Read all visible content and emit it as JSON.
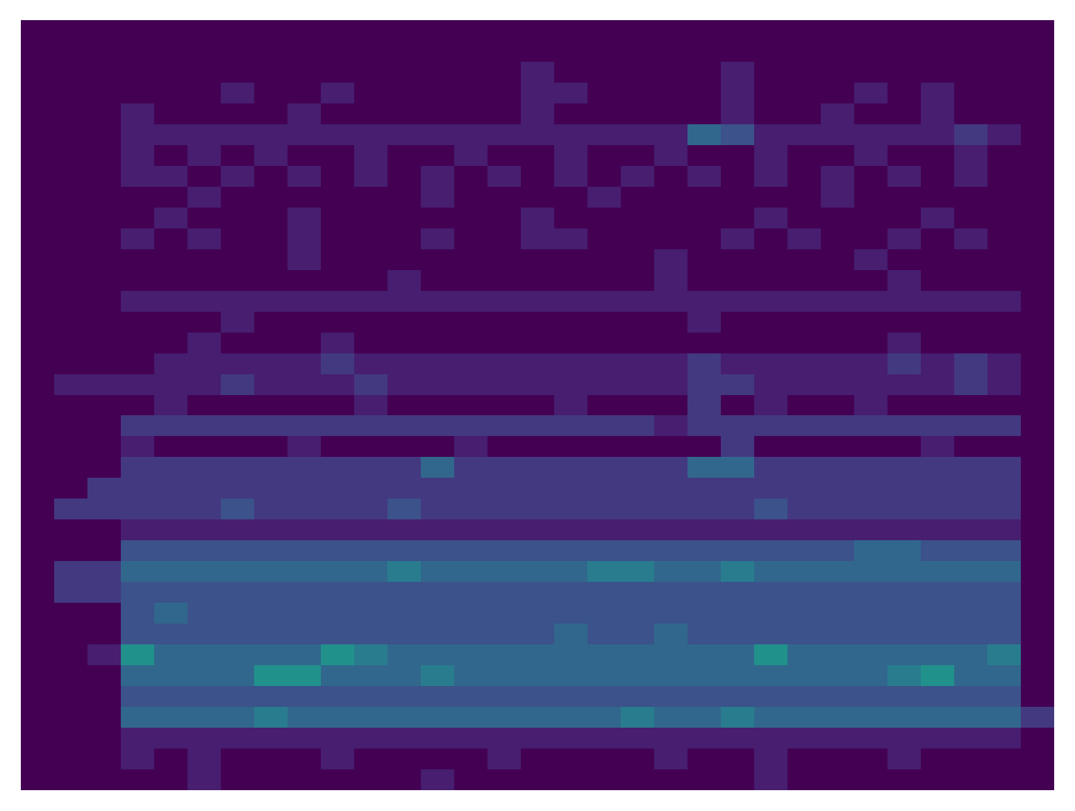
{
  "chart_data": {
    "type": "heatmap",
    "tick_labels": false,
    "grid": false,
    "zlim": [
      0,
      12
    ],
    "cells": [
      [
        0,
        0,
        0,
        0,
        0,
        0,
        0,
        0,
        0,
        0,
        0,
        0,
        0,
        0,
        0,
        0,
        0,
        0,
        0,
        0,
        0,
        0,
        0,
        0,
        0,
        0,
        0,
        0,
        0,
        0,
        0
      ],
      [
        0,
        0,
        0,
        0,
        0,
        0,
        0,
        0,
        0,
        0,
        0,
        0,
        0,
        0,
        0,
        0,
        0,
        0,
        0,
        0,
        0,
        0,
        0,
        0,
        0,
        0,
        0,
        0,
        0,
        0,
        0
      ],
      [
        0,
        0,
        0,
        0,
        0,
        0,
        0,
        0,
        0,
        0,
        0,
        0,
        0,
        0,
        0,
        1,
        0,
        0,
        0,
        0,
        0,
        1,
        0,
        0,
        0,
        0,
        0,
        0,
        0,
        0,
        0
      ],
      [
        0,
        0,
        0,
        0,
        0,
        0,
        1,
        0,
        0,
        1,
        0,
        0,
        0,
        0,
        0,
        1,
        1,
        0,
        0,
        0,
        0,
        1,
        0,
        0,
        0,
        1,
        0,
        1,
        0,
        0,
        0
      ],
      [
        0,
        0,
        0,
        1,
        0,
        0,
        0,
        0,
        1,
        0,
        0,
        0,
        0,
        0,
        0,
        1,
        0,
        0,
        0,
        0,
        0,
        1,
        0,
        0,
        1,
        0,
        0,
        1,
        0,
        0,
        0
      ],
      [
        0,
        0,
        0,
        1,
        1,
        1,
        1,
        1,
        1,
        1,
        1,
        1,
        1,
        1,
        1,
        1,
        1,
        1,
        1,
        1,
        4,
        3,
        1,
        1,
        1,
        1,
        1,
        1,
        2,
        1,
        0
      ],
      [
        0,
        0,
        0,
        1,
        0,
        1,
        0,
        1,
        0,
        0,
        1,
        0,
        0,
        1,
        0,
        0,
        1,
        0,
        0,
        1,
        0,
        0,
        1,
        0,
        0,
        1,
        0,
        0,
        1,
        0,
        0
      ],
      [
        0,
        0,
        0,
        1,
        1,
        0,
        1,
        0,
        1,
        0,
        1,
        0,
        1,
        0,
        1,
        0,
        1,
        0,
        1,
        0,
        1,
        0,
        1,
        0,
        1,
        0,
        1,
        0,
        1,
        0,
        0
      ],
      [
        0,
        0,
        0,
        0,
        0,
        1,
        0,
        0,
        0,
        0,
        0,
        0,
        1,
        0,
        0,
        0,
        0,
        1,
        0,
        0,
        0,
        0,
        0,
        0,
        1,
        0,
        0,
        0,
        0,
        0,
        0
      ],
      [
        0,
        0,
        0,
        0,
        1,
        0,
        0,
        0,
        1,
        0,
        0,
        0,
        0,
        0,
        0,
        1,
        0,
        0,
        0,
        0,
        0,
        0,
        1,
        0,
        0,
        0,
        0,
        1,
        0,
        0,
        0
      ],
      [
        0,
        0,
        0,
        1,
        0,
        1,
        0,
        0,
        1,
        0,
        0,
        0,
        1,
        0,
        0,
        1,
        1,
        0,
        0,
        0,
        0,
        1,
        0,
        1,
        0,
        0,
        1,
        0,
        1,
        0,
        0
      ],
      [
        0,
        0,
        0,
        0,
        0,
        0,
        0,
        0,
        1,
        0,
        0,
        0,
        0,
        0,
        0,
        0,
        0,
        0,
        0,
        1,
        0,
        0,
        0,
        0,
        0,
        1,
        0,
        0,
        0,
        0,
        0
      ],
      [
        0,
        0,
        0,
        0,
        0,
        0,
        0,
        0,
        0,
        0,
        0,
        1,
        0,
        0,
        0,
        0,
        0,
        0,
        0,
        1,
        0,
        0,
        0,
        0,
        0,
        0,
        1,
        0,
        0,
        0,
        0
      ],
      [
        0,
        0,
        0,
        1,
        1,
        1,
        1,
        1,
        1,
        1,
        1,
        1,
        1,
        1,
        1,
        1,
        1,
        1,
        1,
        1,
        1,
        1,
        1,
        1,
        1,
        1,
        1,
        1,
        1,
        1,
        0
      ],
      [
        0,
        0,
        0,
        0,
        0,
        0,
        1,
        0,
        0,
        0,
        0,
        0,
        0,
        0,
        0,
        0,
        0,
        0,
        0,
        0,
        1,
        0,
        0,
        0,
        0,
        0,
        0,
        0,
        0,
        0,
        0
      ],
      [
        0,
        0,
        0,
        0,
        0,
        1,
        0,
        0,
        0,
        1,
        0,
        0,
        0,
        0,
        0,
        0,
        0,
        0,
        0,
        0,
        0,
        0,
        0,
        0,
        0,
        0,
        1,
        0,
        0,
        0,
        0
      ],
      [
        0,
        0,
        0,
        0,
        1,
        1,
        1,
        1,
        1,
        2,
        1,
        1,
        1,
        1,
        1,
        1,
        1,
        1,
        1,
        1,
        2,
        1,
        1,
        1,
        1,
        1,
        2,
        1,
        2,
        1,
        0
      ],
      [
        0,
        1,
        1,
        1,
        1,
        1,
        2,
        1,
        1,
        1,
        2,
        1,
        1,
        1,
        1,
        1,
        1,
        1,
        1,
        1,
        2,
        2,
        1,
        1,
        1,
        1,
        1,
        1,
        2,
        1,
        0
      ],
      [
        0,
        0,
        0,
        0,
        1,
        0,
        0,
        0,
        0,
        0,
        1,
        0,
        0,
        0,
        0,
        0,
        1,
        0,
        0,
        0,
        2,
        0,
        1,
        0,
        0,
        1,
        0,
        0,
        0,
        0,
        0
      ],
      [
        0,
        0,
        0,
        2,
        2,
        2,
        2,
        2,
        2,
        2,
        2,
        2,
        2,
        2,
        2,
        2,
        2,
        2,
        2,
        1,
        2,
        2,
        2,
        2,
        2,
        2,
        2,
        2,
        2,
        2,
        0
      ],
      [
        0,
        0,
        0,
        1,
        0,
        0,
        0,
        0,
        1,
        0,
        0,
        0,
        0,
        1,
        0,
        0,
        0,
        0,
        0,
        0,
        0,
        2,
        0,
        0,
        0,
        0,
        0,
        1,
        0,
        0,
        0
      ],
      [
        0,
        0,
        0,
        2,
        2,
        2,
        2,
        2,
        2,
        2,
        2,
        2,
        4,
        2,
        2,
        2,
        2,
        2,
        2,
        2,
        4,
        4,
        2,
        2,
        2,
        2,
        2,
        2,
        2,
        2,
        0
      ],
      [
        0,
        0,
        2,
        2,
        2,
        2,
        2,
        2,
        2,
        2,
        2,
        2,
        2,
        2,
        2,
        2,
        2,
        2,
        2,
        2,
        2,
        2,
        2,
        2,
        2,
        2,
        2,
        2,
        2,
        2,
        0
      ],
      [
        0,
        2,
        2,
        2,
        2,
        2,
        3,
        2,
        2,
        2,
        2,
        3,
        2,
        2,
        2,
        2,
        2,
        2,
        2,
        2,
        2,
        2,
        3,
        2,
        2,
        2,
        2,
        2,
        2,
        2,
        0
      ],
      [
        0,
        0,
        0,
        1,
        1,
        1,
        1,
        1,
        1,
        1,
        1,
        1,
        1,
        1,
        1,
        1,
        1,
        1,
        1,
        1,
        1,
        1,
        1,
        1,
        1,
        1,
        1,
        1,
        1,
        1,
        0
      ],
      [
        0,
        0,
        0,
        3,
        3,
        3,
        3,
        3,
        3,
        3,
        3,
        3,
        3,
        3,
        3,
        3,
        3,
        3,
        3,
        3,
        3,
        3,
        3,
        3,
        3,
        4,
        4,
        3,
        3,
        3,
        0
      ],
      [
        0,
        2,
        2,
        4,
        4,
        4,
        4,
        4,
        4,
        4,
        4,
        5,
        4,
        4,
        4,
        4,
        4,
        5,
        5,
        4,
        4,
        5,
        4,
        4,
        4,
        4,
        4,
        4,
        4,
        4,
        0
      ],
      [
        0,
        2,
        2,
        3,
        3,
        3,
        3,
        3,
        3,
        3,
        3,
        3,
        3,
        3,
        3,
        3,
        3,
        3,
        3,
        3,
        3,
        3,
        3,
        3,
        3,
        3,
        3,
        3,
        3,
        3,
        0
      ],
      [
        0,
        0,
        0,
        3,
        4,
        3,
        3,
        3,
        3,
        3,
        3,
        3,
        3,
        3,
        3,
        3,
        3,
        3,
        3,
        3,
        3,
        3,
        3,
        3,
        3,
        3,
        3,
        3,
        3,
        3,
        0
      ],
      [
        0,
        0,
        0,
        3,
        3,
        3,
        3,
        3,
        3,
        3,
        3,
        3,
        3,
        3,
        3,
        3,
        4,
        3,
        3,
        4,
        3,
        3,
        3,
        3,
        3,
        3,
        3,
        3,
        3,
        3,
        0
      ],
      [
        0,
        0,
        1,
        6,
        4,
        4,
        4,
        4,
        4,
        6,
        5,
        4,
        4,
        4,
        4,
        4,
        4,
        4,
        4,
        4,
        4,
        4,
        6,
        4,
        4,
        4,
        4,
        4,
        4,
        5,
        0
      ],
      [
        0,
        0,
        0,
        4,
        4,
        4,
        4,
        6,
        6,
        4,
        4,
        4,
        5,
        4,
        4,
        4,
        4,
        4,
        4,
        4,
        4,
        4,
        4,
        4,
        4,
        4,
        5,
        6,
        4,
        4,
        0
      ],
      [
        0,
        0,
        0,
        3,
        3,
        3,
        3,
        3,
        3,
        3,
        3,
        3,
        3,
        3,
        3,
        3,
        3,
        3,
        3,
        3,
        3,
        3,
        3,
        3,
        3,
        3,
        3,
        3,
        3,
        3,
        0
      ],
      [
        0,
        0,
        0,
        4,
        4,
        4,
        4,
        5,
        4,
        4,
        4,
        4,
        4,
        4,
        4,
        4,
        4,
        4,
        5,
        4,
        4,
        5,
        4,
        4,
        4,
        4,
        4,
        4,
        4,
        4,
        2
      ],
      [
        0,
        0,
        0,
        1,
        1,
        1,
        1,
        1,
        1,
        1,
        1,
        1,
        1,
        1,
        1,
        1,
        1,
        1,
        1,
        1,
        1,
        1,
        1,
        1,
        1,
        1,
        1,
        1,
        1,
        1,
        0
      ],
      [
        0,
        0,
        0,
        1,
        0,
        1,
        0,
        0,
        0,
        1,
        0,
        0,
        0,
        0,
        1,
        0,
        0,
        0,
        0,
        1,
        0,
        0,
        1,
        0,
        0,
        0,
        1,
        0,
        0,
        0,
        0
      ],
      [
        0,
        0,
        0,
        0,
        0,
        1,
        0,
        0,
        0,
        0,
        0,
        0,
        1,
        0,
        0,
        0,
        0,
        0,
        0,
        0,
        0,
        0,
        1,
        0,
        0,
        0,
        0,
        0,
        0,
        0,
        0
      ]
    ]
  }
}
